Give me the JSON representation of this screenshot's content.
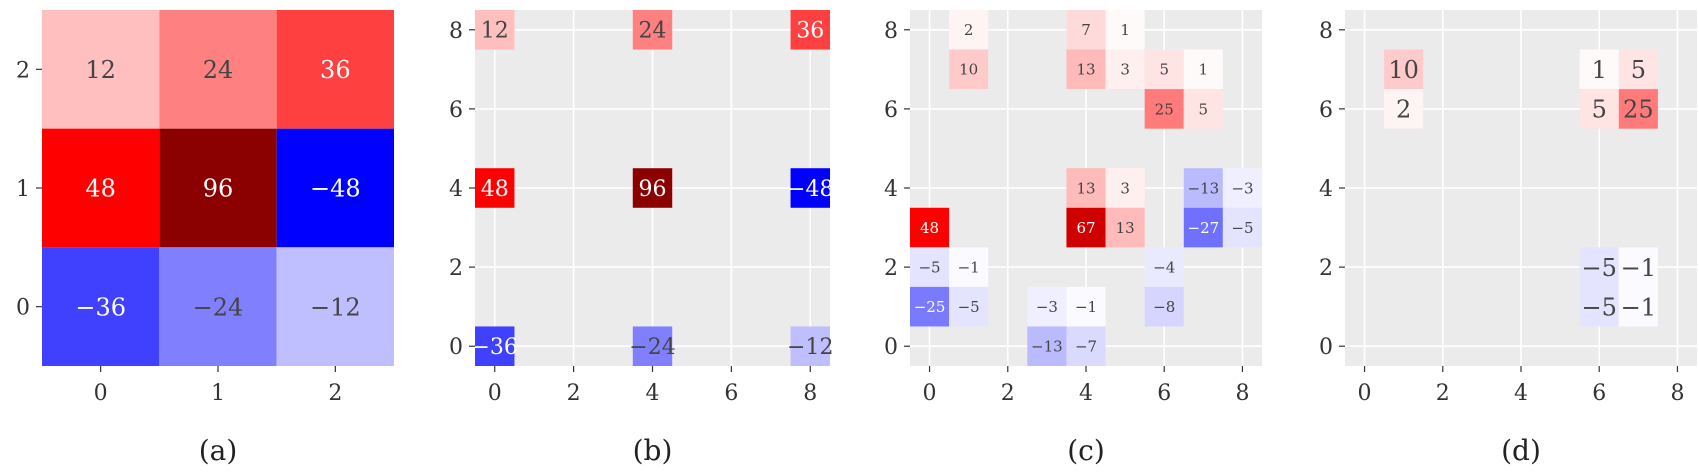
{
  "chart_data": [
    {
      "type": "heatmap",
      "caption": "(a)",
      "xlim": [
        -0.5,
        2.5
      ],
      "ylim": [
        -0.5,
        2.5
      ],
      "xticks": [
        0,
        1,
        2
      ],
      "yticks": [
        0,
        1,
        2
      ],
      "background": "none",
      "grid": false,
      "color_range": [
        -96,
        96
      ],
      "cells": [
        {
          "x": 0,
          "y": 2,
          "value": 12,
          "label": "12"
        },
        {
          "x": 1,
          "y": 2,
          "value": 24,
          "label": "24"
        },
        {
          "x": 2,
          "y": 2,
          "value": 36,
          "label": "36"
        },
        {
          "x": 0,
          "y": 1,
          "value": 48,
          "label": "48"
        },
        {
          "x": 1,
          "y": 1,
          "value": 96,
          "label": "96"
        },
        {
          "x": 2,
          "y": 1,
          "value": -48,
          "label": "−48"
        },
        {
          "x": 0,
          "y": 0,
          "value": -36,
          "label": "−36"
        },
        {
          "x": 1,
          "y": 0,
          "value": -24,
          "label": "−24"
        },
        {
          "x": 2,
          "y": 0,
          "value": -12,
          "label": "−12"
        }
      ]
    },
    {
      "type": "heatmap",
      "caption": "(b)",
      "xlim": [
        -0.5,
        8.5
      ],
      "ylim": [
        -0.5,
        8.5
      ],
      "xticks": [
        0,
        2,
        4,
        6,
        8
      ],
      "yticks": [
        0,
        2,
        4,
        6,
        8
      ],
      "background": "gray",
      "grid": true,
      "color_range": [
        -96,
        96
      ],
      "cells": [
        {
          "x": 0,
          "y": 8,
          "value": 12,
          "label": "12"
        },
        {
          "x": 4,
          "y": 8,
          "value": 24,
          "label": "24"
        },
        {
          "x": 8,
          "y": 8,
          "value": 36,
          "label": "36"
        },
        {
          "x": 0,
          "y": 4,
          "value": 48,
          "label": "48"
        },
        {
          "x": 4,
          "y": 4,
          "value": 96,
          "label": "96"
        },
        {
          "x": 8,
          "y": 4,
          "value": -48,
          "label": "−48"
        },
        {
          "x": 0,
          "y": 0,
          "value": -36,
          "label": "−36"
        },
        {
          "x": 4,
          "y": 0,
          "value": -24,
          "label": "−24"
        },
        {
          "x": 8,
          "y": 0,
          "value": -12,
          "label": "−12"
        }
      ]
    },
    {
      "type": "heatmap",
      "caption": "(c)",
      "xlim": [
        -0.5,
        8.5
      ],
      "ylim": [
        -0.5,
        8.5
      ],
      "xticks": [
        0,
        2,
        4,
        6,
        8
      ],
      "yticks": [
        0,
        2,
        4,
        6,
        8
      ],
      "background": "gray",
      "grid": true,
      "color_range": [
        -96,
        96
      ],
      "cells": [
        {
          "x": 1,
          "y": 8,
          "value": 2,
          "label": "2"
        },
        {
          "x": 4,
          "y": 8,
          "value": 7,
          "label": "7"
        },
        {
          "x": 5,
          "y": 8,
          "value": 1,
          "label": "1"
        },
        {
          "x": 1,
          "y": 7,
          "value": 10,
          "label": "10"
        },
        {
          "x": 4,
          "y": 7,
          "value": 13,
          "label": "13"
        },
        {
          "x": 5,
          "y": 7,
          "value": 3,
          "label": "3"
        },
        {
          "x": 6,
          "y": 7,
          "value": 5,
          "label": "5"
        },
        {
          "x": 7,
          "y": 7,
          "value": 1,
          "label": "1"
        },
        {
          "x": 6,
          "y": 6,
          "value": 25,
          "label": "25"
        },
        {
          "x": 7,
          "y": 6,
          "value": 5,
          "label": "5"
        },
        {
          "x": 4,
          "y": 4,
          "value": 13,
          "label": "13"
        },
        {
          "x": 5,
          "y": 4,
          "value": 3,
          "label": "3"
        },
        {
          "x": 7,
          "y": 4,
          "value": -13,
          "label": "−13"
        },
        {
          "x": 8,
          "y": 4,
          "value": -3,
          "label": "−3"
        },
        {
          "x": 0,
          "y": 3,
          "value": 48,
          "label": "48"
        },
        {
          "x": 4,
          "y": 3,
          "value": 67,
          "label": "67"
        },
        {
          "x": 5,
          "y": 3,
          "value": 13,
          "label": "13"
        },
        {
          "x": 7,
          "y": 3,
          "value": -27,
          "label": "−27"
        },
        {
          "x": 8,
          "y": 3,
          "value": -5,
          "label": "−5"
        },
        {
          "x": 0,
          "y": 2,
          "value": -5,
          "label": "−5"
        },
        {
          "x": 1,
          "y": 2,
          "value": -1,
          "label": "−1"
        },
        {
          "x": 6,
          "y": 2,
          "value": -4,
          "label": "−4"
        },
        {
          "x": 0,
          "y": 1,
          "value": -25,
          "label": "−25"
        },
        {
          "x": 1,
          "y": 1,
          "value": -5,
          "label": "−5"
        },
        {
          "x": 3,
          "y": 1,
          "value": -3,
          "label": "−3"
        },
        {
          "x": 4,
          "y": 1,
          "value": -1,
          "label": "−1"
        },
        {
          "x": 6,
          "y": 1,
          "value": -8,
          "label": "−8"
        },
        {
          "x": 3,
          "y": 0,
          "value": -13,
          "label": "−13"
        },
        {
          "x": 4,
          "y": 0,
          "value": -7,
          "label": "−7"
        }
      ]
    },
    {
      "type": "heatmap",
      "caption": "(d)",
      "xlim": [
        -0.5,
        8.5
      ],
      "ylim": [
        -0.5,
        8.5
      ],
      "xticks": [
        0,
        2,
        4,
        6,
        8
      ],
      "yticks": [
        0,
        2,
        4,
        6,
        8
      ],
      "background": "gray",
      "grid": true,
      "color_range": [
        -96,
        96
      ],
      "cells": [
        {
          "x": 1,
          "y": 7,
          "value": 10,
          "label": "10"
        },
        {
          "x": 6,
          "y": 7,
          "value": 1,
          "label": "1"
        },
        {
          "x": 7,
          "y": 7,
          "value": 5,
          "label": "5"
        },
        {
          "x": 1,
          "y": 6,
          "value": 2,
          "label": "2"
        },
        {
          "x": 6,
          "y": 6,
          "value": 5,
          "label": "5"
        },
        {
          "x": 7,
          "y": 6,
          "value": 25,
          "label": "25"
        },
        {
          "x": 6,
          "y": 2,
          "value": -5,
          "label": "−5"
        },
        {
          "x": 7,
          "y": 2,
          "value": -1,
          "label": "−1"
        },
        {
          "x": 6,
          "y": 1,
          "value": -5,
          "label": "−5"
        },
        {
          "x": 7,
          "y": 1,
          "value": -1,
          "label": "−1"
        }
      ]
    }
  ],
  "colors": {
    "negative_max": "#0000ff",
    "neutral": "#ffffff",
    "positive_mid": "#ff0000",
    "positive_max": "#8b0000",
    "panel_background": "#ebebeb",
    "grid": "#ffffff",
    "text_dark": "#444444",
    "text_light": "#ffffff"
  }
}
